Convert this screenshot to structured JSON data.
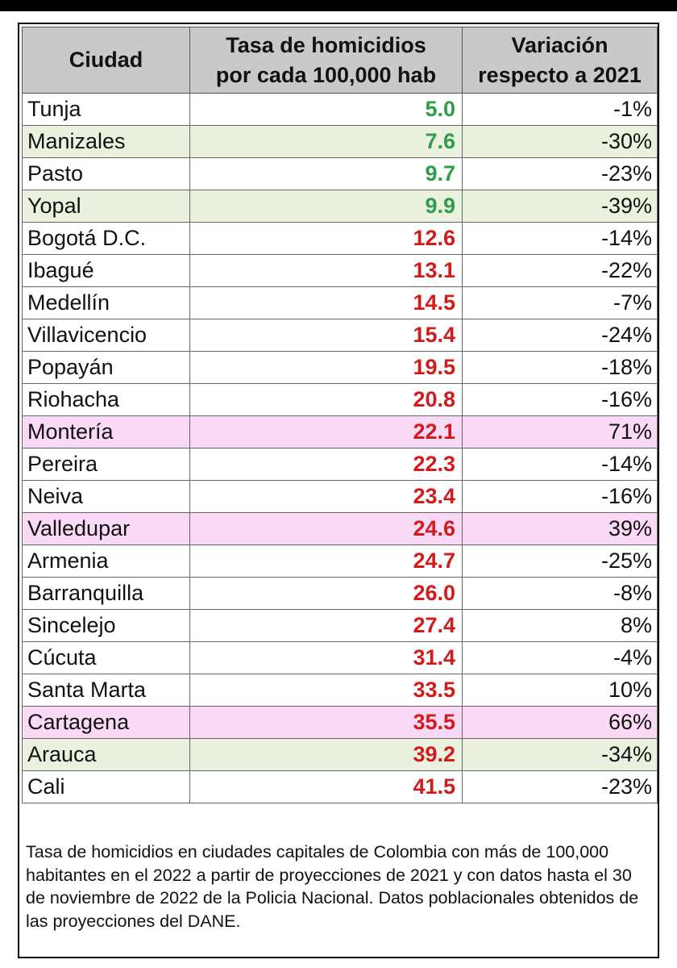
{
  "table": {
    "headers": {
      "city_label": "Ciudad",
      "rate_line1": "Tasa de homicidios",
      "rate_line2": "por cada 100,000 hab",
      "var_line1": "Variación",
      "var_line2": "respecto a 2021"
    },
    "colors": {
      "low_rate": "#2e9e4a",
      "high_rate": "#d01c1c",
      "green_row": "#ebf1df",
      "pink_row": "#fad9f7",
      "header_bg": "#c9c9c9"
    },
    "rows": [
      {
        "city": "Tunja",
        "rate": "5.0",
        "variation": "-1%",
        "rate_color": "green",
        "highlight": "none"
      },
      {
        "city": "Manizales",
        "rate": "7.6",
        "variation": "-30%",
        "rate_color": "green",
        "highlight": "green"
      },
      {
        "city": "Pasto",
        "rate": "9.7",
        "variation": "-23%",
        "rate_color": "green",
        "highlight": "none"
      },
      {
        "city": "Yopal",
        "rate": "9.9",
        "variation": "-39%",
        "rate_color": "green",
        "highlight": "green"
      },
      {
        "city": "Bogotá D.C.",
        "rate": "12.6",
        "variation": "-14%",
        "rate_color": "red",
        "highlight": "none"
      },
      {
        "city": "Ibagué",
        "rate": "13.1",
        "variation": "-22%",
        "rate_color": "red",
        "highlight": "none"
      },
      {
        "city": "Medellín",
        "rate": "14.5",
        "variation": "-7%",
        "rate_color": "red",
        "highlight": "none"
      },
      {
        "city": "Villavicencio",
        "rate": "15.4",
        "variation": "-24%",
        "rate_color": "red",
        "highlight": "none"
      },
      {
        "city": "Popayán",
        "rate": "19.5",
        "variation": "-18%",
        "rate_color": "red",
        "highlight": "none"
      },
      {
        "city": "Riohacha",
        "rate": "20.8",
        "variation": "-16%",
        "rate_color": "red",
        "highlight": "none"
      },
      {
        "city": "Montería",
        "rate": "22.1",
        "variation": "71%",
        "rate_color": "red",
        "highlight": "pink"
      },
      {
        "city": "Pereira",
        "rate": "22.3",
        "variation": "-14%",
        "rate_color": "red",
        "highlight": "none"
      },
      {
        "city": "Neiva",
        "rate": "23.4",
        "variation": "-16%",
        "rate_color": "red",
        "highlight": "none"
      },
      {
        "city": "Valledupar",
        "rate": "24.6",
        "variation": "39%",
        "rate_color": "red",
        "highlight": "pink"
      },
      {
        "city": "Armenia",
        "rate": "24.7",
        "variation": "-25%",
        "rate_color": "red",
        "highlight": "none"
      },
      {
        "city": "Barranquilla",
        "rate": "26.0",
        "variation": "-8%",
        "rate_color": "red",
        "highlight": "none"
      },
      {
        "city": "Sincelejo",
        "rate": "27.4",
        "variation": "8%",
        "rate_color": "red",
        "highlight": "none"
      },
      {
        "city": "Cúcuta",
        "rate": "31.4",
        "variation": "-4%",
        "rate_color": "red",
        "highlight": "none"
      },
      {
        "city": "Santa Marta",
        "rate": "33.5",
        "variation": "10%",
        "rate_color": "red",
        "highlight": "none"
      },
      {
        "city": "Cartagena",
        "rate": "35.5",
        "variation": "66%",
        "rate_color": "red",
        "highlight": "pink"
      },
      {
        "city": "Arauca",
        "rate": "39.2",
        "variation": "-34%",
        "rate_color": "red",
        "highlight": "green"
      },
      {
        "city": "Cali",
        "rate": "41.5",
        "variation": "-23%",
        "rate_color": "red",
        "highlight": "none"
      }
    ]
  },
  "note": "Tasa de homicidios en ciudades capitales de Colombia con más de 100,000 habitantes en el 2022 a partir de proyecciones de 2021 y con datos hasta el 30 de noviembre de 2022 de la Policia Nacional. Datos poblacionales obtenidos de las proyecciones del DANE."
}
